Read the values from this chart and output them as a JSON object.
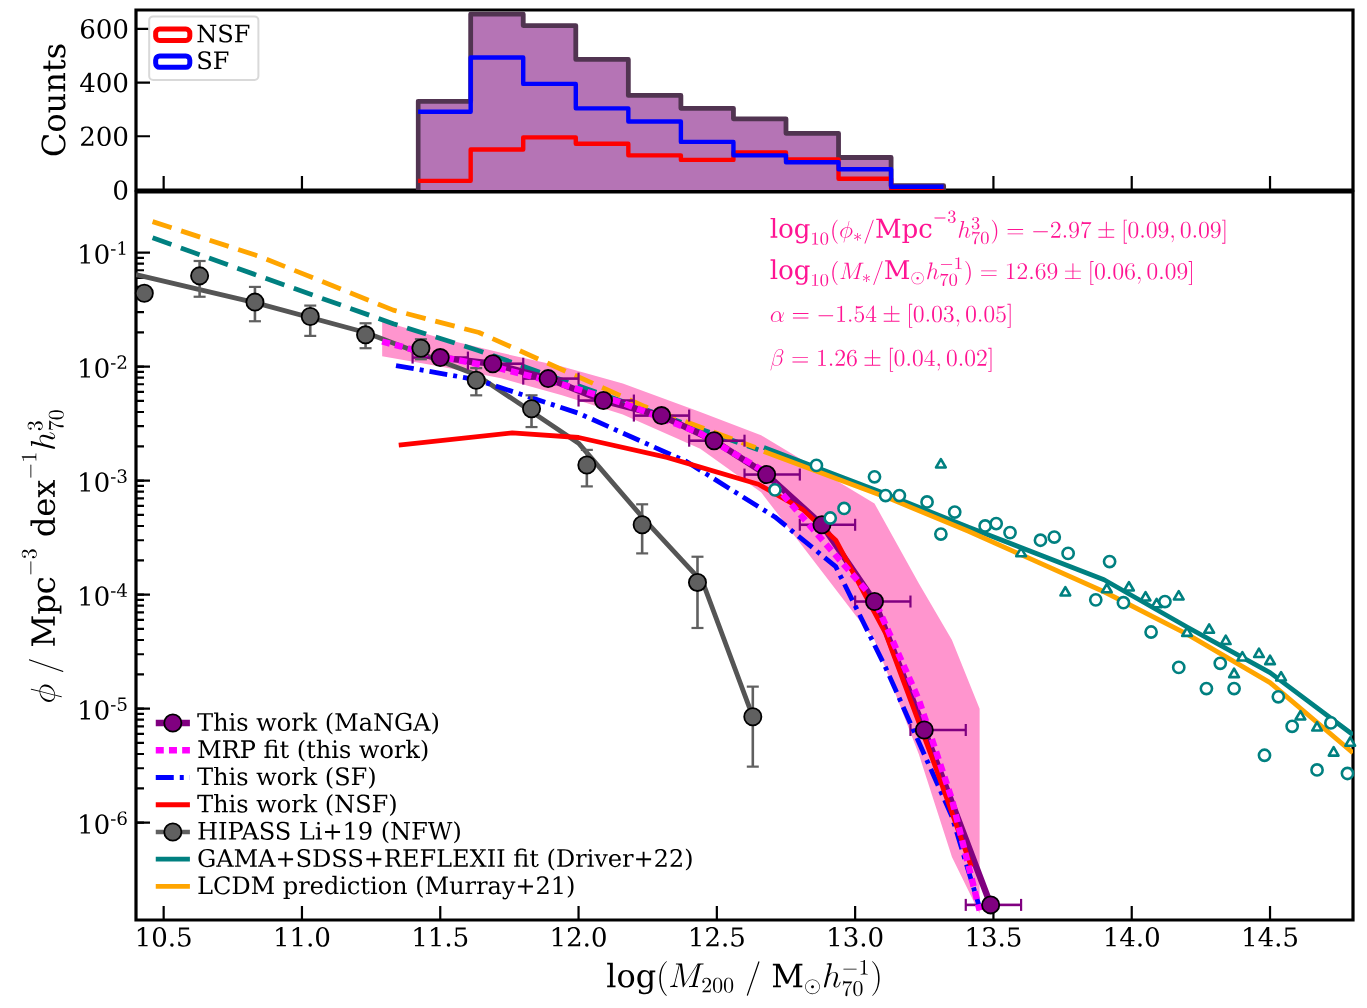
{
  "chart_data": [
    {
      "type": "histogram",
      "ylabel": "Counts",
      "bins": [
        11.42,
        11.61,
        11.8,
        11.99,
        12.18,
        12.37,
        12.56,
        12.75,
        12.94,
        13.13,
        13.32
      ],
      "series": [
        {
          "color": "#b574b5",
          "values": [
            330,
            655,
            612,
            486,
            352,
            304,
            265,
            211,
            121,
            16
          ]
        },
        {
          "name": "NSF",
          "color": "#ff0000",
          "values": [
            34,
            151,
            196,
            172,
            129,
            112,
            140,
            114,
            42,
            5
          ]
        },
        {
          "name": "SF",
          "color": "#0000ff",
          "values": [
            291,
            493,
            395,
            304,
            255,
            179,
            129,
            103,
            77,
            12
          ]
        }
      ],
      "xlim": [
        10.4,
        14.8
      ],
      "xticks": [
        10.5,
        11,
        11.5,
        12,
        12.5,
        13,
        13.5,
        14,
        14.5
      ],
      "ylim": [
        0,
        670
      ],
      "yticks": [
        0,
        200,
        400,
        600
      ],
      "tick_labels": "y",
      "legend": "top left"
    },
    {
      "type": "line",
      "xlabel": "\\log(M_{200}\\ /\\ \\mathrm{M}_{\\odot}h_{70}^{-1})",
      "ylabel": "\\phi\\ /\\ \\mathrm{Mpc}^{-3}\\ \\mathrm{dex}^{-1}h_{70}^{3}",
      "log": "y",
      "xlim": [
        10.4,
        14.8
      ],
      "ylim": [
        1.4e-07,
        0.34
      ],
      "xticks": [
        {
          "value": 10.5,
          "label": "10.5"
        },
        {
          "value": 11,
          "label": "11.0"
        },
        {
          "value": 11.5,
          "label": "11.5"
        },
        {
          "value": 12,
          "label": "12.0"
        },
        {
          "value": 12.5,
          "label": "12.5"
        },
        {
          "value": 13,
          "label": "13.0"
        },
        {
          "value": 13.5,
          "label": "13.5"
        },
        {
          "value": 14,
          "label": "14.0"
        },
        {
          "value": 14.5,
          "label": "14.5"
        }
      ],
      "yticks": [
        {
          "value": 1e-06,
          "label": "10$^{-6}$"
        },
        {
          "value": 1e-05,
          "label": "10$^{-5}$"
        },
        {
          "value": 0.0001,
          "label": "10$^{-4}$"
        },
        {
          "value": 0.001,
          "label": "10$^{-3}$"
        },
        {
          "value": 0.01,
          "label": "10$^{-2}$"
        },
        {
          "value": 0.1,
          "label": "10$^{-1}$"
        }
      ],
      "legend": "bottom left",
      "annotations": [
        "\\log_{10}(\\phi_{*}/\\mathrm{Mpc}^{-3}h_{70}^{3}) = -2.97 \\pm [0.09, 0.09]",
        "\\log_{10}(M_{*}/\\mathrm{M}_{\\odot}h_{70}^{-1}) = 12.69 \\pm [0.06, 0.09]",
        "\\alpha = -1.54 \\pm [0.03, 0.05]",
        "\\beta = 1.26 \\pm [0.04, 0.02]"
      ],
      "series": [
        {
          "type": "line",
          "color": "#555555",
          "x": [
            10.4,
            10.83,
            11.23,
            11.63,
            12.0,
            12.24,
            12.45,
            12.63
          ],
          "values": [
            0.064,
            0.0364,
            0.0199,
            0.0085,
            0.00213,
            0.00045,
            0.000127,
            8.5e-06
          ]
        },
        {
          "type": "line",
          "color": "#008080",
          "line_style": "dashed",
          "x": [
            10.46,
            10.85,
            11.33,
            11.64,
            12.65
          ],
          "values": [
            0.135,
            0.0617,
            0.0238,
            0.0138,
            0.00187
          ]
        },
        {
          "type": "line",
          "color": "#ffa500",
          "line_style": "dashed",
          "x": [
            10.46,
            10.85,
            11.33,
            11.64,
            12.24,
            12.64
          ],
          "values": [
            0.187,
            0.092,
            0.0313,
            0.0199,
            0.00446,
            0.00195
          ]
        },
        {
          "type": "line",
          "name": "This work (MaNGA)",
          "color": "#800080",
          "marker": "circle",
          "x": [
            11.5,
            11.69,
            11.89,
            12.09,
            12.3,
            12.49,
            12.68,
            12.88,
            13.07,
            13.25,
            13.49
          ],
          "values": [
            0.012,
            0.0106,
            0.00785,
            0.00504,
            0.00372,
            0.00224,
            0.00113,
            0.00041,
            8.7e-05,
            6.5e-06,
            1.9e-07
          ],
          "xerrors": [
            [
              11.4,
              11.6
            ],
            [
              11.6,
              11.8
            ],
            [
              11.8,
              12.0
            ],
            [
              12.0,
              12.2
            ],
            [
              12.2,
              12.4
            ],
            [
              12.4,
              12.6
            ],
            [
              12.6,
              12.8
            ],
            [
              12.8,
              13.0
            ],
            [
              13.0,
              13.2
            ],
            [
              13.2,
              13.4
            ],
            [
              13.4,
              13.6
            ]
          ]
        },
        {
          "type": "line",
          "name": "MRP fit (this work)",
          "color": "#ff00ff",
          "line_style": "dotted",
          "x": [
            11.29,
            11.5,
            11.72,
            11.94,
            12.16,
            12.44,
            12.66,
            13.07,
            13.23,
            13.35,
            13.45
          ],
          "values": [
            0.0166,
            0.0122,
            0.0096,
            0.007,
            0.0048,
            0.0026,
            0.00125,
            9e-05,
            1.2e-05,
            1.6e-06,
            1.7e-07
          ],
          "lower": [
            0.0123,
            0.01,
            0.0079,
            0.0056,
            0.0038,
            0.0019,
            0.00079,
            4e-05,
            4e-06,
            5e-07,
            1.6e-07
          ],
          "upper": [
            0.0251,
            0.0178,
            0.0132,
            0.01,
            0.0071,
            0.004,
            0.0025,
            0.00063,
            0.000126,
            4e-05,
            1e-05
          ]
        },
        {
          "type": "line",
          "name": "This work (SF)",
          "color": "#0000ff",
          "line_style": "dashdot",
          "x": [
            11.34,
            11.63,
            12.0,
            12.39,
            12.71,
            12.93,
            13.11,
            13.35,
            13.45
          ],
          "values": [
            0.0102,
            0.0077,
            0.0039,
            0.00147,
            0.00048,
            0.000176,
            2.3e-05,
            1.13e-06,
            1.8e-07
          ]
        },
        {
          "type": "line",
          "name": "This work (NSF)",
          "color": "#ff0000",
          "x": [
            11.35,
            11.76,
            12.0,
            12.32,
            12.65,
            12.81,
            12.93,
            13.11,
            13.29,
            13.42
          ],
          "values": [
            0.00205,
            0.00262,
            0.00239,
            0.0016,
            0.00093,
            0.00056,
            0.0003,
            4.6e-05,
            3.1e-06,
            4.1e-07
          ]
        },
        {
          "type": "scatter",
          "name": "HIPASS Li+19 (NFW)",
          "color": "#606060",
          "marker": "circle",
          "x": [
            10.43,
            10.63,
            10.83,
            11.03,
            11.23,
            11.43,
            11.63,
            11.83,
            12.03,
            12.23,
            12.43,
            12.63
          ],
          "values": [
            0.044,
            0.0625,
            0.0368,
            0.0275,
            0.019,
            0.0145,
            0.0076,
            0.00427,
            0.00137,
            0.00041,
            0.000128,
            8.5e-06
          ],
          "errors": [
            null,
            [
              0.041,
              0.0844
            ],
            [
              0.025,
              0.05
            ],
            [
              0.0186,
              0.0343
            ],
            [
              0.0145,
              0.024
            ],
            [
              0.0116,
              0.0174
            ],
            [
              0.0056,
              0.0097
            ],
            [
              0.00295,
              0.0056
            ],
            [
              0.00089,
              0.00186
            ],
            [
              0.00023,
              0.00062
            ],
            [
              5.1e-05,
              0.000215
            ],
            [
              3.1e-06,
              1.56e-05
            ]
          ]
        },
        {
          "type": "line",
          "name": "GAMA+SDSS+REFLEXII fit (Driver+22)",
          "color": "#008080",
          "x": [
            12.67,
            13.09,
            13.41,
            13.9,
            14.2,
            14.5,
            14.8
          ],
          "values": [
            0.00195,
            0.0008,
            0.00039,
            0.000135,
            5.2e-05,
            2.07e-05,
            5.9e-06
          ]
        },
        {
          "type": "line",
          "name": "LCDM prediction (Murray+21)",
          "color": "#ffa500",
          "x": [
            12.67,
            13.11,
            13.41,
            13.9,
            14.2,
            14.5,
            14.8
          ],
          "values": [
            0.0018,
            0.00072,
            0.00036,
            0.000106,
            4.5e-05,
            1.69e-05,
            4.1e-06
          ]
        },
        {
          "type": "scatter",
          "color": "#008080",
          "marker": "circle",
          "x": [
            12.86,
            12.96,
            13.07,
            13.16,
            13.26,
            13.36,
            13.47,
            13.56,
            13.67,
            13.77,
            13.87,
            13.97,
            14.07,
            14.17,
            14.27,
            14.37,
            14.48,
            14.58,
            14.67,
            14.78
          ],
          "values": [
            0.00136,
            0.00057,
            0.00108,
            0.00074,
            0.00065,
            0.00053,
            0.0004,
            0.00035,
            0.0003,
            0.00023,
            9e-05,
            8.5e-05,
            4.7e-05,
            2.3e-05,
            1.5e-05,
            1.5e-05,
            3.9e-06,
            7e-06,
            2.9e-06,
            2.7e-06
          ]
        },
        {
          "type": "scatter",
          "color": "#008080",
          "marker": "circle",
          "x": [
            12.71,
            12.91,
            13.11,
            13.31,
            13.51,
            13.72,
            13.92,
            14.12,
            14.32,
            14.53,
            14.72
          ],
          "values": [
            0.00083,
            0.00047,
            0.00074,
            0.00034,
            0.00042,
            0.00032,
            0.000195,
            8.7e-05,
            2.5e-05,
            1.27e-05,
            7.5e-06
          ]
        },
        {
          "type": "scatter",
          "color": "#008080",
          "marker": "triangle",
          "x": [
            13.31,
            13.6,
            13.76,
            13.91,
            13.99,
            14.05,
            14.09,
            14.17,
            14.2,
            14.28,
            14.34,
            14.37,
            14.4,
            14.46,
            14.5,
            14.54,
            14.61,
            14.67,
            14.73,
            14.79
          ],
          "values": [
            0.00138,
            0.00023,
            0.000104,
            0.000111,
            0.000115,
            9.4e-05,
            8.2e-05,
            9.6e-05,
            4.6e-05,
            4.9e-05,
            3.9e-05,
            2e-05,
            2.8e-05,
            3e-05,
            2.6e-05,
            1.87e-05,
            8.5e-06,
            6.8e-06,
            4.1e-06,
            5e-06
          ]
        }
      ]
    }
  ]
}
